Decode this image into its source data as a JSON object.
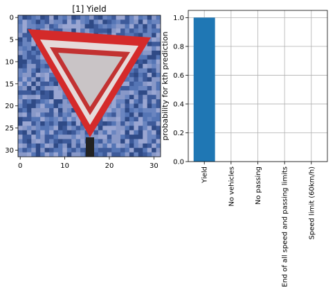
{
  "chart_data": [
    {
      "type": "image",
      "title": "[1] Yield",
      "xlim": [
        -0.5,
        31.5
      ],
      "ylim": [
        31.5,
        -0.5
      ],
      "x_ticks": [
        0,
        10,
        20,
        30
      ],
      "y_ticks": [
        0,
        5,
        10,
        15,
        20,
        25,
        30
      ],
      "grid": false,
      "image_content": "yield traffic sign: inverted red-bordered white triangle on blue background"
    },
    {
      "type": "bar",
      "categories": [
        "Yield",
        "No vehicles",
        "No passing",
        "End of all speed and passing limits",
        "Speed limit (60km/h)"
      ],
      "values": [
        1.0,
        0.0,
        0.0,
        0.0,
        0.0
      ],
      "ylabel": "probability for kth prediction",
      "ylim": [
        0,
        1.05
      ],
      "y_ticks": [
        0.0,
        0.2,
        0.4,
        0.6,
        0.8,
        1.0
      ],
      "grid": true,
      "bar_color": "#1f77b4"
    }
  ],
  "colors": {
    "sky_blue": "#4b68a8",
    "sign_red": "#d42a2a",
    "sign_white": "#c8c8c8"
  }
}
